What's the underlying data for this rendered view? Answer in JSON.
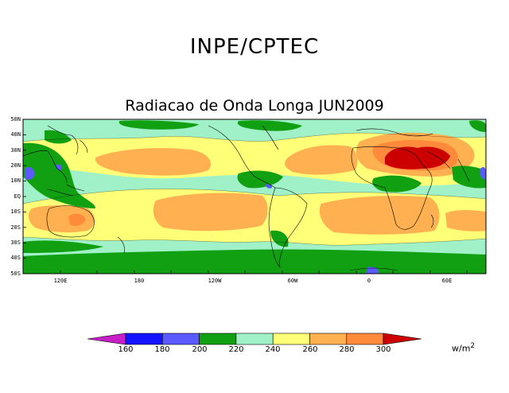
{
  "header": {
    "organization": "INPE/CPTEC",
    "title": "Radiacao de Onda Longa JUN2009"
  },
  "axes": {
    "lat_labels": [
      "50N",
      "40N",
      "30N",
      "20N",
      "10N",
      "EQ",
      "10S",
      "20S",
      "30S",
      "40S",
      "50S"
    ],
    "lon_labels": [
      {
        "text": "120E",
        "lon": 120
      },
      {
        "text": "180",
        "lon": 180
      },
      {
        "text": "120W",
        "lon": 240
      },
      {
        "text": "60W",
        "lon": 300
      },
      {
        "text": "0",
        "lon": 360
      },
      {
        "text": "60E",
        "lon": 420
      }
    ],
    "lon_range": [
      75,
      450
    ],
    "lat_range": [
      -50,
      50
    ]
  },
  "colorbar": {
    "labels": [
      "160",
      "180",
      "200",
      "220",
      "240",
      "260",
      "280",
      "300"
    ],
    "colors": [
      "#c81ec8",
      "#1414ff",
      "#5a5aff",
      "#11a011",
      "#a0f0c8",
      "#ffff78",
      "#ffb050",
      "#ff8a3c",
      "#cc0000"
    ],
    "unit": "w/m",
    "unit_exp": "2"
  },
  "palette": {
    "c200": "#11a011",
    "c220": "#a0f0c8",
    "c240": "#ffff78",
    "c260": "#ffb050",
    "c280": "#ff8a3c",
    "c300": "#cc0000",
    "c180": "#5a5aff"
  }
}
